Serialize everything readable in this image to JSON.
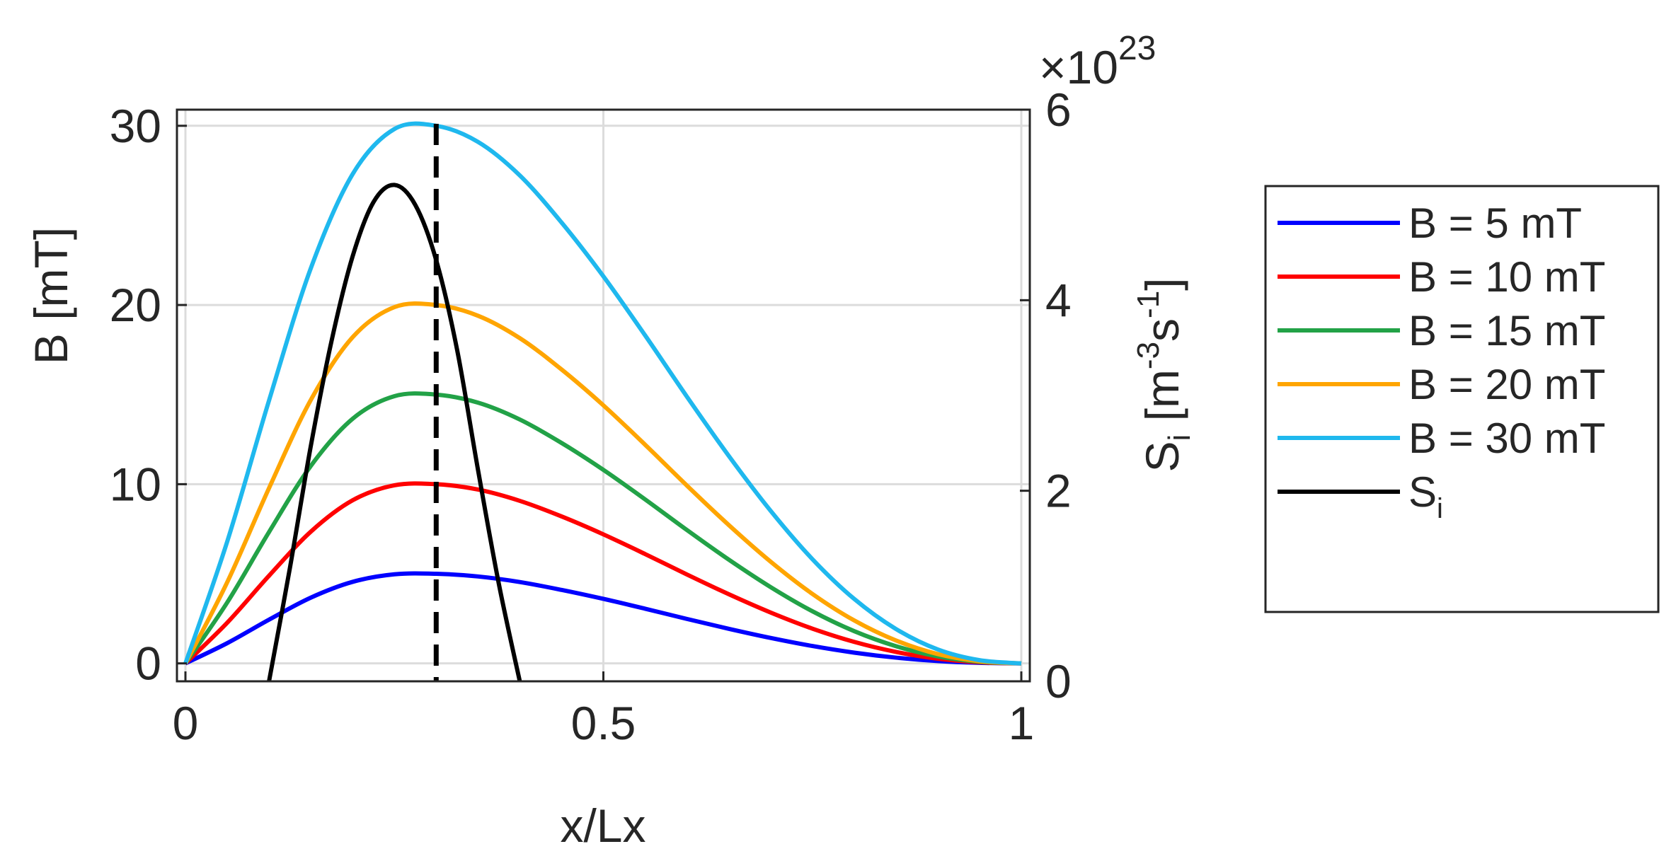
{
  "chart_data": {
    "type": "line",
    "title": "",
    "xlabel": "x/Lx",
    "ylabel_left": "B [mT]",
    "ylabel_right_base": "S",
    "ylabel_right_sub": "i",
    "ylabel_right_open": " [m",
    "ylabel_right_exp1": "-3",
    "ylabel_right_mid": "s",
    "ylabel_right_exp2": "-1",
    "ylabel_right_close": "]",
    "right_axis_multiplier_prefix": "×10",
    "right_axis_multiplier_exp": "23",
    "xlim": [
      0,
      1
    ],
    "ylim_left": [
      -1,
      30.9
    ],
    "ylim_right": [
      0,
      6
    ],
    "x_ticks": [
      "0",
      "0.5",
      "1"
    ],
    "x_tick_values": [
      0,
      0.5,
      1
    ],
    "y_left_ticks": [
      "0",
      "10",
      "20",
      "30"
    ],
    "y_left_tick_values": [
      0,
      10,
      20,
      30
    ],
    "y_right_ticks": [
      "0",
      "2",
      "4",
      "6"
    ],
    "y_right_tick_values": [
      0,
      2,
      4,
      6
    ],
    "grid": true,
    "legend_position": "outside-right",
    "x": [
      0,
      0.05,
      0.1,
      0.15,
      0.2,
      0.25,
      0.3,
      0.35,
      0.4,
      0.45,
      0.5,
      0.55,
      0.6,
      0.65,
      0.7,
      0.75,
      0.8,
      0.85,
      0.9,
      0.95,
      1
    ],
    "series": [
      {
        "name": "B = 5 mT",
        "axis": "left",
        "color": "#0000ff",
        "values": [
          0,
          1.13,
          2.44,
          3.67,
          4.55,
          4.97,
          5.0,
          4.85,
          4.54,
          4.1,
          3.6,
          3.05,
          2.48,
          1.93,
          1.42,
          0.97,
          0.6,
          0.32,
          0.13,
          0.03,
          0
        ]
      },
      {
        "name": "B = 10 mT",
        "axis": "left",
        "color": "#ff0000",
        "values": [
          0,
          2.27,
          4.89,
          7.35,
          9.1,
          9.94,
          10.0,
          9.7,
          9.07,
          8.2,
          7.2,
          6.1,
          4.96,
          3.86,
          2.84,
          1.94,
          1.2,
          0.64,
          0.26,
          0.06,
          0
        ]
      },
      {
        "name": "B = 15 mT",
        "axis": "left",
        "color": "#22a247",
        "values": [
          0,
          3.4,
          7.33,
          11.02,
          13.65,
          14.91,
          15.0,
          14.55,
          13.61,
          12.3,
          10.8,
          9.15,
          7.44,
          5.79,
          4.26,
          2.91,
          1.8,
          0.96,
          0.39,
          0.09,
          0
        ]
      },
      {
        "name": "B = 20 mT",
        "axis": "left",
        "color": "#ffa500",
        "values": [
          0,
          4.53,
          9.78,
          14.7,
          18.2,
          19.88,
          20.0,
          19.4,
          18.15,
          16.4,
          14.4,
          12.2,
          9.92,
          7.72,
          5.68,
          3.88,
          2.4,
          1.28,
          0.52,
          0.12,
          0
        ]
      },
      {
        "name": "B = 30 mT",
        "axis": "left",
        "color": "#1fb8ee",
        "values": [
          0,
          6.8,
          14.67,
          22.05,
          27.3,
          29.82,
          30.0,
          29.1,
          27.23,
          24.6,
          21.6,
          18.3,
          14.88,
          11.58,
          8.52,
          5.82,
          3.6,
          1.92,
          0.78,
          0.18,
          0
        ]
      },
      {
        "name": "S",
        "name_sub": "i",
        "axis": "right",
        "color": "#000000",
        "x": [
          0.1,
          0.125,
          0.15,
          0.175,
          0.2,
          0.225,
          0.25,
          0.275,
          0.3,
          0.325,
          0.35,
          0.375,
          0.4
        ],
        "values": [
          0,
          1.19,
          2.47,
          3.58,
          4.46,
          5.03,
          5.21,
          5.0,
          4.42,
          3.48,
          2.22,
          1.02,
          0
        ]
      }
    ],
    "vertical_line": {
      "x": 0.3,
      "style": "dashed",
      "color": "#000000"
    }
  }
}
